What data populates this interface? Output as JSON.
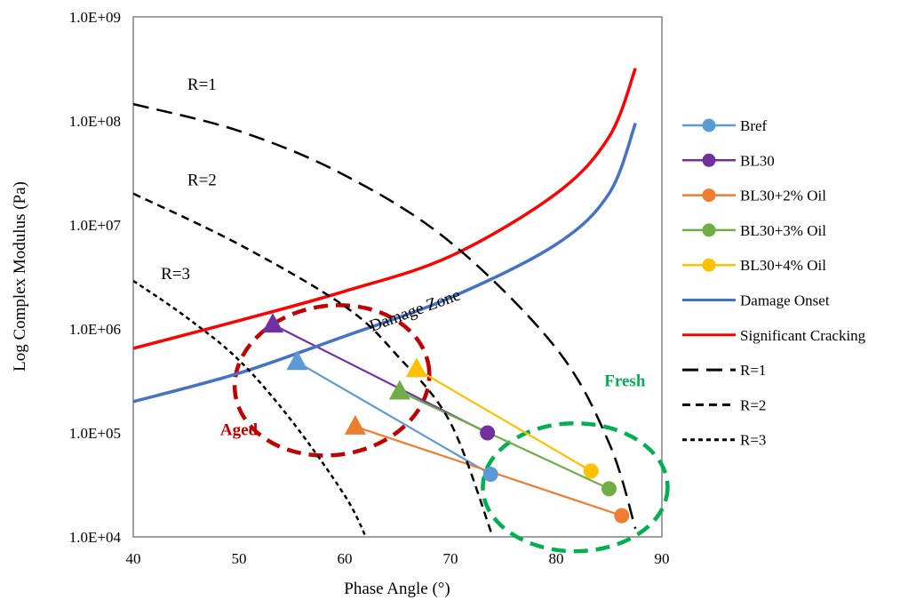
{
  "chart_data": {
    "type": "scatter",
    "xlabel": "Phase Angle (°)",
    "ylabel": "Log Complex Modulus (Pa)",
    "xlim": [
      40,
      90
    ],
    "ylim": [
      10000,
      1000000000
    ],
    "y_scale": "log",
    "grid": false,
    "legend_placement": "right",
    "x_ticks": [
      "40",
      "50",
      "60",
      "70",
      "80",
      "90"
    ],
    "y_ticks": [
      "1.0E+04",
      "1.0E+05",
      "1.0E+06",
      "1.0E+07",
      "1.0E+08",
      "1.0E+09"
    ],
    "series": [
      {
        "name": "Bref",
        "color": "#5b9bd5",
        "marker": "circle",
        "points": [
          {
            "x": 55.5,
            "y": 480000,
            "marker": "triangle"
          },
          {
            "x": 73.8,
            "y": 40000,
            "marker": "circle"
          }
        ]
      },
      {
        "name": "BL30",
        "color": "#7030a0",
        "marker": "circle",
        "points": [
          {
            "x": 53.2,
            "y": 1100000,
            "marker": "triangle"
          },
          {
            "x": 73.5,
            "y": 100000,
            "marker": "circle"
          }
        ]
      },
      {
        "name": "BL30+2% Oil",
        "color": "#ed7d31",
        "marker": "circle",
        "points": [
          {
            "x": 61.0,
            "y": 115000,
            "marker": "triangle"
          },
          {
            "x": 86.2,
            "y": 16000,
            "marker": "circle"
          }
        ]
      },
      {
        "name": "BL30+3% Oil",
        "color": "#70ad47",
        "marker": "circle",
        "points": [
          {
            "x": 65.2,
            "y": 250000,
            "marker": "triangle"
          },
          {
            "x": 85.0,
            "y": 29000,
            "marker": "circle"
          }
        ]
      },
      {
        "name": "BL30+4% Oil",
        "color": "#ffc000",
        "marker": "circle",
        "points": [
          {
            "x": 66.8,
            "y": 410000,
            "marker": "triangle"
          },
          {
            "x": 83.3,
            "y": 43000,
            "marker": "circle"
          }
        ]
      },
      {
        "name": "Damage Onset",
        "color": "#4472c4",
        "style": "solid",
        "width": 3.5,
        "points": [
          {
            "x": 40,
            "y": 200000
          },
          {
            "x": 50,
            "y": 375000
          },
          {
            "x": 60,
            "y": 850000
          },
          {
            "x": 70,
            "y": 2000000
          },
          {
            "x": 80,
            "y": 6500000
          },
          {
            "x": 85,
            "y": 20000000
          },
          {
            "x": 87.5,
            "y": 95000000
          }
        ]
      },
      {
        "name": "Significant Cracking",
        "color": "#ff0000",
        "style": "solid",
        "width": 3.5,
        "points": [
          {
            "x": 40,
            "y": 650000
          },
          {
            "x": 50,
            "y": 1200000
          },
          {
            "x": 60,
            "y": 2300000
          },
          {
            "x": 70,
            "y": 5000000
          },
          {
            "x": 80,
            "y": 20000000
          },
          {
            "x": 85,
            "y": 70000000
          },
          {
            "x": 87.5,
            "y": 320000000
          }
        ]
      },
      {
        "name": "R=1",
        "color": "#000000",
        "style": "longdash",
        "width": 2.5,
        "points": [
          {
            "x": 40,
            "y": 145000000
          },
          {
            "x": 50,
            "y": 80000000
          },
          {
            "x": 60,
            "y": 30000000
          },
          {
            "x": 70,
            "y": 6800000
          },
          {
            "x": 80,
            "y": 650000
          },
          {
            "x": 85,
            "y": 80000
          },
          {
            "x": 87.5,
            "y": 12000
          }
        ]
      },
      {
        "name": "R=2",
        "color": "#000000",
        "style": "dash",
        "width": 2.5,
        "points": [
          {
            "x": 40,
            "y": 20000000
          },
          {
            "x": 50,
            "y": 6500000
          },
          {
            "x": 60,
            "y": 1650000
          },
          {
            "x": 65,
            "y": 550000
          },
          {
            "x": 70,
            "y": 125000
          },
          {
            "x": 74,
            "y": 10000
          }
        ]
      },
      {
        "name": "R=3",
        "color": "#000000",
        "style": "shortdash",
        "width": 2.5,
        "points": [
          {
            "x": 40,
            "y": 2900000
          },
          {
            "x": 45,
            "y": 1300000
          },
          {
            "x": 50,
            "y": 500000
          },
          {
            "x": 55,
            "y": 130000
          },
          {
            "x": 60,
            "y": 25000
          },
          {
            "x": 62,
            "y": 10000
          }
        ]
      }
    ],
    "annotations": [
      {
        "text": "R=1",
        "x": 46.5,
        "y": 200000000,
        "style": "normal"
      },
      {
        "text": "R=2",
        "x": 46.5,
        "y": 24000000,
        "style": "normal"
      },
      {
        "text": "R=3",
        "x": 44,
        "y": 3000000,
        "style": "normal"
      },
      {
        "text": "Damage Zone",
        "x": 66.8,
        "y": 1350000,
        "style": "rotated"
      },
      {
        "text": "Aged",
        "x": 50,
        "y": 95000,
        "style": "bold",
        "color": "#c00000"
      },
      {
        "text": "Fresh",
        "x": 86.5,
        "y": 280000,
        "style": "bold",
        "color": "#00b050"
      }
    ],
    "regions": [
      {
        "name": "Aged",
        "color": "#c00000",
        "cx": 58.8,
        "cy": 320000
      },
      {
        "name": "Fresh",
        "color": "#00b050",
        "cx": 81.8,
        "cy": 30000
      }
    ]
  }
}
